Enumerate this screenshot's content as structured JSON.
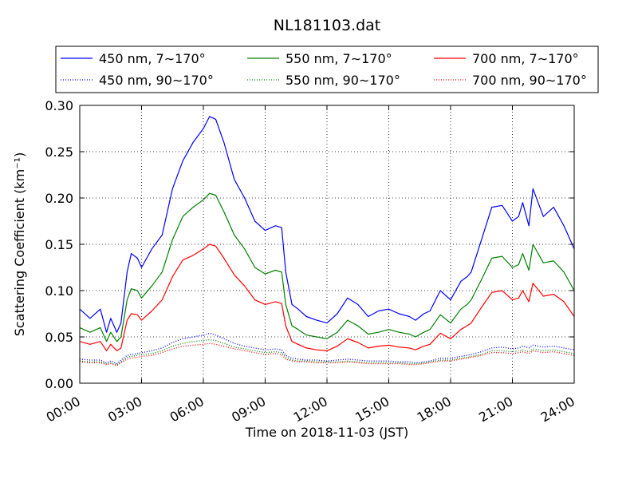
{
  "chart_data": {
    "type": "line",
    "title": "NL181103.dat",
    "xlabel": "Time on 2018-11-03 (JST)",
    "ylabel": "Scattering Coefficient (km⁻¹)",
    "xlim": [
      "00:00",
      "24:00"
    ],
    "ylim": [
      0.0,
      0.3
    ],
    "x_ticks": [
      "00:00",
      "03:00",
      "06:00",
      "09:00",
      "12:00",
      "15:00",
      "18:00",
      "21:00",
      "24:00"
    ],
    "y_ticks": [
      "0.00",
      "0.05",
      "0.10",
      "0.15",
      "0.20",
      "0.25",
      "0.30"
    ],
    "grid": true,
    "legend_position": "top",
    "x_hours": [
      0,
      0.5,
      1,
      1.3,
      1.5,
      1.8,
      2,
      2.3,
      2.5,
      2.8,
      3,
      3.5,
      4,
      4.5,
      5,
      5.5,
      6,
      6.3,
      6.6,
      7,
      7.5,
      8,
      8.5,
      9,
      9.5,
      9.8,
      10,
      10.3,
      10.6,
      11,
      11.5,
      12,
      12.5,
      13,
      13.5,
      14,
      14.5,
      15,
      15.5,
      16,
      16.3,
      16.7,
      17,
      17.5,
      18,
      18.5,
      18.8,
      19,
      19.5,
      20,
      20.5,
      21,
      21.3,
      21.5,
      21.8,
      22,
      22.5,
      23,
      23.5,
      24
    ],
    "series": [
      {
        "name": "450 nm, 7∼170°",
        "color": "#0000ff",
        "style": "solid",
        "values": [
          0.08,
          0.07,
          0.08,
          0.055,
          0.07,
          0.055,
          0.065,
          0.12,
          0.14,
          0.135,
          0.125,
          0.145,
          0.16,
          0.21,
          0.24,
          0.26,
          0.275,
          0.288,
          0.285,
          0.26,
          0.22,
          0.2,
          0.175,
          0.165,
          0.17,
          0.168,
          0.12,
          0.085,
          0.08,
          0.072,
          0.068,
          0.065,
          0.075,
          0.092,
          0.085,
          0.072,
          0.078,
          0.08,
          0.075,
          0.072,
          0.068,
          0.075,
          0.078,
          0.1,
          0.09,
          0.11,
          0.115,
          0.12,
          0.155,
          0.19,
          0.192,
          0.175,
          0.18,
          0.195,
          0.17,
          0.21,
          0.18,
          0.19,
          0.17,
          0.145
        ]
      },
      {
        "name": "450 nm, 90∼170°",
        "color": "#0000ff",
        "style": "dotted",
        "values": [
          0.026,
          0.025,
          0.025,
          0.022,
          0.024,
          0.021,
          0.025,
          0.03,
          0.031,
          0.032,
          0.033,
          0.035,
          0.038,
          0.044,
          0.048,
          0.05,
          0.052,
          0.054,
          0.052,
          0.048,
          0.043,
          0.04,
          0.038,
          0.036,
          0.037,
          0.036,
          0.03,
          0.027,
          0.026,
          0.025,
          0.025,
          0.024,
          0.025,
          0.026,
          0.025,
          0.024,
          0.024,
          0.024,
          0.023,
          0.023,
          0.022,
          0.023,
          0.024,
          0.027,
          0.027,
          0.029,
          0.03,
          0.031,
          0.034,
          0.038,
          0.039,
          0.037,
          0.038,
          0.04,
          0.038,
          0.041,
          0.039,
          0.04,
          0.038,
          0.036
        ]
      },
      {
        "name": "550 nm, 7∼170°",
        "color": "#008000",
        "style": "solid",
        "values": [
          0.06,
          0.055,
          0.06,
          0.045,
          0.055,
          0.045,
          0.05,
          0.09,
          0.102,
          0.1,
          0.092,
          0.105,
          0.12,
          0.155,
          0.18,
          0.19,
          0.198,
          0.205,
          0.203,
          0.185,
          0.16,
          0.145,
          0.125,
          0.118,
          0.122,
          0.12,
          0.085,
          0.062,
          0.058,
          0.052,
          0.05,
          0.048,
          0.055,
          0.068,
          0.062,
          0.053,
          0.055,
          0.058,
          0.055,
          0.053,
          0.05,
          0.055,
          0.058,
          0.074,
          0.065,
          0.08,
          0.085,
          0.09,
          0.112,
          0.135,
          0.137,
          0.125,
          0.128,
          0.14,
          0.122,
          0.15,
          0.13,
          0.132,
          0.12,
          0.1
        ]
      },
      {
        "name": "550 nm, 90∼170°",
        "color": "#008000",
        "style": "dotted",
        "values": [
          0.024,
          0.023,
          0.023,
          0.021,
          0.022,
          0.02,
          0.023,
          0.028,
          0.029,
          0.03,
          0.031,
          0.032,
          0.035,
          0.04,
          0.043,
          0.045,
          0.046,
          0.047,
          0.046,
          0.043,
          0.039,
          0.037,
          0.035,
          0.033,
          0.034,
          0.033,
          0.028,
          0.025,
          0.024,
          0.024,
          0.023,
          0.023,
          0.023,
          0.024,
          0.023,
          0.022,
          0.022,
          0.022,
          0.022,
          0.021,
          0.021,
          0.022,
          0.023,
          0.025,
          0.025,
          0.027,
          0.028,
          0.029,
          0.031,
          0.035,
          0.035,
          0.034,
          0.035,
          0.036,
          0.034,
          0.037,
          0.035,
          0.036,
          0.034,
          0.032
        ]
      },
      {
        "name": "700 nm, 7∼170°",
        "color": "#ff0000",
        "style": "solid",
        "values": [
          0.045,
          0.042,
          0.045,
          0.035,
          0.042,
          0.035,
          0.038,
          0.068,
          0.075,
          0.074,
          0.068,
          0.078,
          0.09,
          0.115,
          0.133,
          0.138,
          0.145,
          0.15,
          0.148,
          0.135,
          0.117,
          0.105,
          0.09,
          0.085,
          0.088,
          0.086,
          0.062,
          0.045,
          0.042,
          0.038,
          0.036,
          0.035,
          0.04,
          0.048,
          0.044,
          0.038,
          0.04,
          0.041,
          0.039,
          0.038,
          0.036,
          0.04,
          0.042,
          0.054,
          0.048,
          0.058,
          0.062,
          0.065,
          0.082,
          0.098,
          0.1,
          0.09,
          0.092,
          0.1,
          0.088,
          0.108,
          0.094,
          0.096,
          0.088,
          0.072
        ]
      },
      {
        "name": "700 nm, 90∼170°",
        "color": "#ff0000",
        "style": "dotted",
        "values": [
          0.023,
          0.022,
          0.022,
          0.02,
          0.021,
          0.019,
          0.022,
          0.026,
          0.027,
          0.028,
          0.029,
          0.03,
          0.033,
          0.037,
          0.04,
          0.041,
          0.042,
          0.043,
          0.042,
          0.04,
          0.037,
          0.035,
          0.033,
          0.031,
          0.032,
          0.031,
          0.026,
          0.024,
          0.023,
          0.023,
          0.022,
          0.022,
          0.022,
          0.023,
          0.022,
          0.021,
          0.021,
          0.021,
          0.021,
          0.02,
          0.02,
          0.021,
          0.022,
          0.024,
          0.024,
          0.026,
          0.027,
          0.028,
          0.03,
          0.033,
          0.033,
          0.032,
          0.033,
          0.034,
          0.032,
          0.035,
          0.033,
          0.034,
          0.032,
          0.03
        ]
      }
    ]
  }
}
